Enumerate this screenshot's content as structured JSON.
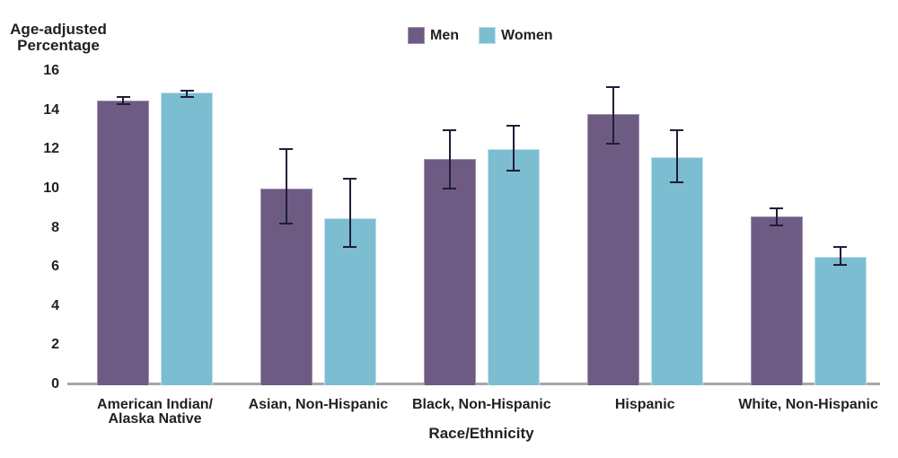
{
  "chart_data": {
    "type": "bar",
    "title": "",
    "ylabel": "Age-adjusted\nPercentage",
    "xlabel": "Race/Ethnicity",
    "ylim": [
      0,
      16
    ],
    "yticks": [
      0,
      2,
      4,
      6,
      8,
      10,
      12,
      14,
      16
    ],
    "grid": false,
    "legend_position": "top-center",
    "error_bars": true,
    "categories": [
      "American Indian/\nAlaska Native",
      "Asian, Non-Hispanic",
      "Black, Non-Hispanic",
      "Hispanic",
      "White, Non-Hispanic"
    ],
    "series": [
      {
        "name": "Men",
        "color": "#6e5b83",
        "border_color": "#a291b2",
        "values": [
          14.5,
          10.0,
          11.5,
          13.8,
          8.6
        ],
        "ci_low": [
          14.3,
          8.2,
          10.0,
          12.3,
          8.1
        ],
        "ci_high": [
          14.7,
          12.0,
          13.0,
          15.2,
          9.0
        ]
      },
      {
        "name": "Women",
        "color": "#7cbdd2",
        "border_color": "#c0e0ea",
        "values": [
          14.9,
          8.5,
          12.0,
          11.6,
          6.5
        ],
        "ci_low": [
          14.7,
          7.0,
          10.9,
          10.3,
          6.1
        ],
        "ci_high": [
          15.0,
          10.5,
          13.2,
          13.0,
          7.0
        ]
      }
    ],
    "error_bar_color": "#1f1d38",
    "axis_line_color": "#a7a7a7",
    "text_color": "#231f20"
  }
}
